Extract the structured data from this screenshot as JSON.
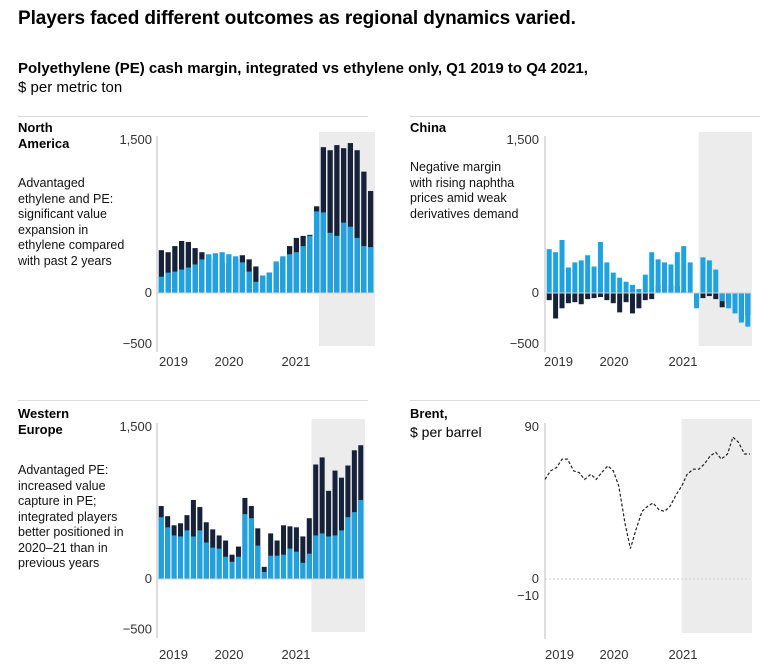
{
  "header": {
    "title": "Players faced different outcomes as regional dynamics varied.",
    "subtitle": "Polyethylene (PE) cash margin, integrated vs ethylene only, Q1 2019 to Q4 2021,",
    "unit": "$ per metric ton"
  },
  "colors": {
    "integrated": "#16223a",
    "ethylene": "#1fa3e0",
    "shade": "#ececec",
    "line": "#222222"
  },
  "chart_data": [
    {
      "type": "bar",
      "id": "na",
      "region": "North America",
      "note": "Advantaged ethylene and PE: significant value expansion in ethylene compared with past 2 years",
      "ylim": [
        -500,
        1500
      ],
      "yticks": [
        "1,500",
        "0",
        "−500"
      ],
      "xticks": [
        "2019",
        "2020",
        "2021"
      ],
      "series": [
        {
          "name": "Integrated",
          "values": [
            420,
            400,
            460,
            510,
            500,
            440,
            400,
            370,
            330,
            300,
            290,
            340,
            370,
            330,
            260,
            170,
            200,
            280,
            340,
            460,
            540,
            560,
            570,
            850,
            1430,
            1400,
            1450,
            1420,
            1470,
            1400,
            1190,
            1000
          ]
        },
        {
          "name": "Ethylene",
          "values": [
            160,
            200,
            210,
            230,
            250,
            280,
            330,
            380,
            390,
            400,
            380,
            360,
            300,
            210,
            110,
            170,
            200,
            310,
            360,
            380,
            400,
            460,
            560,
            800,
            790,
            590,
            560,
            690,
            650,
            540,
            460,
            450
          ]
        }
      ],
      "shade_from_index": 24
    },
    {
      "type": "bar",
      "id": "china",
      "region": "China",
      "note": "Negative margin with rising naphtha prices amid weak derivatives demand",
      "ylim": [
        -500,
        1500
      ],
      "yticks": [
        "1,500",
        "0",
        "−500"
      ],
      "xticks": [
        "2019",
        "2020",
        "2021"
      ],
      "series": [
        {
          "name": "Integrated",
          "values": [
            -70,
            -250,
            -150,
            -100,
            -90,
            -110,
            -60,
            -50,
            -40,
            -70,
            -100,
            -190,
            -90,
            -200,
            -150,
            -70,
            -60,
            80,
            150,
            80,
            70,
            20,
            0,
            -80,
            -50,
            -30,
            -60,
            -140,
            -100,
            -110,
            -260,
            -220
          ]
        },
        {
          "name": "Ethylene",
          "values": [
            430,
            400,
            520,
            250,
            300,
            320,
            370,
            260,
            500,
            300,
            200,
            150,
            110,
            80,
            40,
            180,
            400,
            330,
            300,
            280,
            400,
            460,
            300,
            -150,
            350,
            320,
            230,
            -80,
            -150,
            -200,
            -290,
            -330
          ]
        }
      ],
      "shade_from_index": 24
    },
    {
      "type": "bar",
      "id": "we",
      "region": "Western Europe",
      "note": "Advantaged PE: increased value capture in PE; integrated players better positioned in 2020–21 than in previous years",
      "ylim": [
        -500,
        1500
      ],
      "yticks": [
        "1,500",
        "0",
        "−500"
      ],
      "xticks": [
        "2019",
        "2020",
        "2021"
      ],
      "series": [
        {
          "name": "Integrated",
          "values": [
            720,
            620,
            530,
            550,
            630,
            780,
            710,
            560,
            490,
            430,
            380,
            240,
            320,
            800,
            720,
            500,
            120,
            450,
            380,
            530,
            520,
            510,
            420,
            600,
            1130,
            1200,
            870,
            1070,
            1000,
            1120,
            1270,
            1320
          ]
        },
        {
          "name": "Ethylene",
          "values": [
            610,
            510,
            430,
            420,
            480,
            420,
            480,
            360,
            310,
            300,
            220,
            170,
            220,
            640,
            600,
            330,
            70,
            230,
            230,
            240,
            300,
            270,
            160,
            250,
            430,
            450,
            420,
            430,
            480,
            610,
            660,
            780
          ]
        }
      ],
      "shade_from_index": 24
    },
    {
      "type": "line",
      "id": "brent",
      "title": "Brent,",
      "unit": "$ per barrel",
      "ylim": [
        -10,
        90
      ],
      "yticks": [
        "90",
        "0",
        "−10"
      ],
      "xticks": [
        "2019",
        "2020",
        "2021"
      ],
      "x_start": 2019.0,
      "x_end": 2022.0,
      "shade_from": 2021.0,
      "series": [
        {
          "name": "Brent",
          "x": [
            2019.0,
            2019.08,
            2019.17,
            2019.25,
            2019.33,
            2019.42,
            2019.5,
            2019.58,
            2019.67,
            2019.75,
            2019.83,
            2019.92,
            2020.0,
            2020.08,
            2020.17,
            2020.25,
            2020.33,
            2020.42,
            2020.5,
            2020.58,
            2020.67,
            2020.75,
            2020.83,
            2020.92,
            2021.0,
            2021.08,
            2021.17,
            2021.25,
            2021.33,
            2021.42,
            2021.5,
            2021.58,
            2021.67,
            2021.75,
            2021.83,
            2021.92,
            2022.0
          ],
          "values": [
            59,
            64,
            66,
            71,
            71,
            64,
            63,
            59,
            62,
            59,
            63,
            67,
            64,
            55,
            33,
            18,
            29,
            40,
            43,
            45,
            41,
            40,
            43,
            50,
            55,
            62,
            65,
            65,
            68,
            73,
            75,
            71,
            74,
            84,
            81,
            74,
            74
          ]
        }
      ]
    }
  ]
}
